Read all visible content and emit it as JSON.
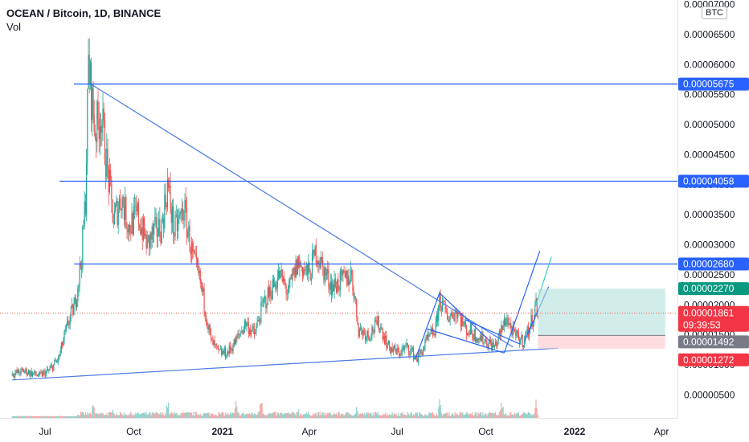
{
  "legend": {
    "symbol": "OCEAN / Bitcoin, 1D, BINANCE",
    "volume": "Vol"
  },
  "currency_badge": "BTC",
  "colors": {
    "up": "#26a69a",
    "down": "#ef5350",
    "drawing": "#2962ff",
    "trend": "#4c7ce8",
    "last_price_line": "#ef5350",
    "target_zone": "#b2dfdb",
    "stop_zone": "#ffcdd2"
  },
  "chart_data": {
    "type": "candlestick",
    "title": "OCEAN / Bitcoin, 1D, BINANCE",
    "x_ticks": [
      "Jul",
      "Oct",
      "2021",
      "Apr",
      "Jul",
      "Oct",
      "2022",
      "Apr"
    ],
    "y_ticks": [
      "0.00000500",
      "0.00001000",
      "0.00001500",
      "0.00002000",
      "0.00002500",
      "0.00003000",
      "0.00003500",
      "0.00004000",
      "0.00004500",
      "0.00005000",
      "0.00005500",
      "0.00006000",
      "0.00006500",
      "0.00007000"
    ],
    "ylim": [
      3.2e-06,
      7e-05
    ],
    "series": [
      {
        "type": "close_path",
        "points": [
          [
            "2020-05-28",
            8.5e-06
          ],
          [
            "2020-06-10",
            9e-06
          ],
          [
            "2020-06-25",
            8.2e-06
          ],
          [
            "2020-07-05",
            9e-06
          ],
          [
            "2020-07-15",
            1.1e-05
          ],
          [
            "2020-07-25",
            1.7e-05
          ],
          [
            "2020-08-01",
            2e-05
          ],
          [
            "2020-08-08",
            2.8e-05
          ],
          [
            "2020-08-12",
            3.8e-05
          ],
          [
            "2020-08-15",
            6e-05
          ],
          [
            "2020-08-18",
            5.5e-05
          ],
          [
            "2020-08-22",
            4.9e-05
          ],
          [
            "2020-08-28",
            5.2e-05
          ],
          [
            "2020-09-04",
            4.2e-05
          ],
          [
            "2020-09-10",
            3.4e-05
          ],
          [
            "2020-09-18",
            3.8e-05
          ],
          [
            "2020-09-26",
            3.3e-05
          ],
          [
            "2020-10-05",
            3.5e-05
          ],
          [
            "2020-10-15",
            3e-05
          ],
          [
            "2020-10-22",
            3.2e-05
          ],
          [
            "2020-10-30",
            3.3e-05
          ],
          [
            "2020-11-05",
            4e-05
          ],
          [
            "2020-11-12",
            3.2e-05
          ],
          [
            "2020-11-22",
            3.6e-05
          ],
          [
            "2020-12-01",
            2.8e-05
          ],
          [
            "2020-12-10",
            2.3e-05
          ],
          [
            "2020-12-20",
            1.4e-05
          ],
          [
            "2020-12-28",
            1.2e-05
          ],
          [
            "2021-01-06",
            1.2e-05
          ],
          [
            "2021-01-15",
            1.4e-05
          ],
          [
            "2021-01-25",
            1.7e-05
          ],
          [
            "2021-02-03",
            1.5e-05
          ],
          [
            "2021-02-12",
            2e-05
          ],
          [
            "2021-02-22",
            2.3e-05
          ],
          [
            "2021-03-01",
            2.5e-05
          ],
          [
            "2021-03-10",
            2.2e-05
          ],
          [
            "2021-03-20",
            2.7e-05
          ],
          [
            "2021-04-01",
            2.5e-05
          ],
          [
            "2021-04-08",
            2.9e-05
          ],
          [
            "2021-04-15",
            2.6e-05
          ],
          [
            "2021-04-25",
            2.3e-05
          ],
          [
            "2021-05-05",
            2.4e-05
          ],
          [
            "2021-05-15",
            2.5e-05
          ],
          [
            "2021-05-22",
            1.6e-05
          ],
          [
            "2021-06-01",
            1.5e-05
          ],
          [
            "2021-06-12",
            1.7e-05
          ],
          [
            "2021-06-22",
            1.3e-05
          ],
          [
            "2021-07-02",
            1.2e-05
          ],
          [
            "2021-07-12",
            1.3e-05
          ],
          [
            "2021-07-22",
            1.1e-05
          ],
          [
            "2021-08-01",
            1.4e-05
          ],
          [
            "2021-08-10",
            1.6e-05
          ],
          [
            "2021-08-14",
            2.1e-05
          ],
          [
            "2021-08-22",
            1.8e-05
          ],
          [
            "2021-09-01",
            1.9e-05
          ],
          [
            "2021-09-10",
            1.6e-05
          ],
          [
            "2021-09-20",
            1.5e-05
          ],
          [
            "2021-10-01",
            1.4e-05
          ],
          [
            "2021-10-10",
            1.3e-05
          ],
          [
            "2021-10-18",
            1.6e-05
          ],
          [
            "2021-10-22",
            1.8e-05
          ],
          [
            "2021-10-30",
            1.5e-05
          ],
          [
            "2021-11-08",
            1.4e-05
          ],
          [
            "2021-11-15",
            1.6e-05
          ],
          [
            "2021-11-22",
            2e-05
          ],
          [
            "2021-11-24",
            1.86e-05
          ]
        ]
      }
    ],
    "volume": {
      "type": "bar",
      "bars": [
        [
          "2020-08-05",
          0.6
        ],
        [
          "2020-08-20",
          0.5
        ],
        [
          "2020-09-10",
          0.45
        ],
        [
          "2020-11-05",
          0.7
        ],
        [
          "2021-01-15",
          0.55
        ],
        [
          "2021-02-10",
          1.0
        ],
        [
          "2021-03-20",
          0.45
        ],
        [
          "2021-05-20",
          0.4
        ],
        [
          "2021-08-14",
          0.6
        ],
        [
          "2021-10-18",
          0.85
        ],
        [
          "2021-11-22",
          0.7
        ]
      ]
    },
    "horizontal_lines": [
      {
        "value": 5.675e-05,
        "label": "0.00005675"
      },
      {
        "value": 4.058e-05,
        "label": "0.00004058"
      },
      {
        "value": 2.68e-05,
        "label": "0.00002680"
      }
    ],
    "trendlines": [
      {
        "from": [
          "2020-08-18",
          5.67e-05
        ],
        "to": [
          "2021-10-29",
          1.3e-05
        ]
      },
      {
        "from": [
          "2020-05-28",
          7.5e-06
        ],
        "to": [
          "2021-12-15",
          1.28e-05
        ]
      }
    ],
    "position": {
      "target": {
        "value": 2.27e-05,
        "label": "0.00002270"
      },
      "entry": {
        "value": 1.492e-05,
        "label": "0.00001492"
      },
      "stop": {
        "value": 1.272e-05,
        "label": "0.00001272"
      }
    },
    "last_price": {
      "value": 1.861e-05,
      "label": "0.00001861",
      "countdown": "09:39:53"
    }
  }
}
